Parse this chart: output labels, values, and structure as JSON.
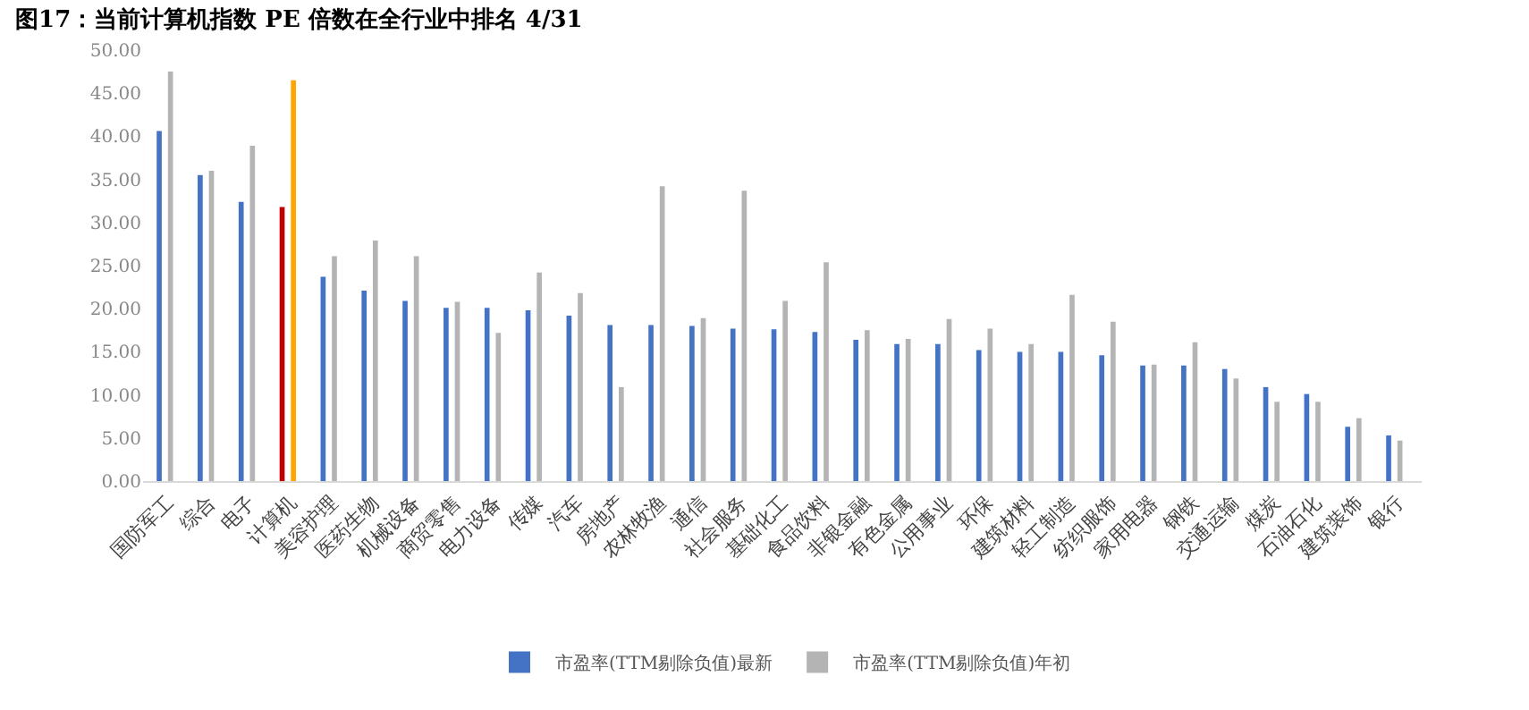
{
  "chart_data": {
    "type": "bar",
    "title": "图17：当前计算机指数 PE 倍数在全行业中排名 4/31",
    "categories": [
      "国防军工",
      "综合",
      "电子",
      "计算机",
      "美容护理",
      "医药生物",
      "机械设备",
      "商贸零售",
      "电力设备",
      "传媒",
      "汽车",
      "房地产",
      "农林牧渔",
      "通信",
      "社会服务",
      "基础化工",
      "食品饮料",
      "非银金融",
      "有色金属",
      "公用事业",
      "环保",
      "建筑材料",
      "轻工制造",
      "纺织服饰",
      "家用电器",
      "钢铁",
      "交通运输",
      "煤炭",
      "石油石化",
      "建筑装饰",
      "银行"
    ],
    "series": [
      {
        "name": "市盈率(TTM剔除负值)最新",
        "color": "#4472c4",
        "colors": [
          "#4472c4",
          "#4472c4",
          "#4472c4",
          "#c00000",
          "#4472c4",
          "#4472c4",
          "#4472c4",
          "#4472c4",
          "#4472c4",
          "#4472c4",
          "#4472c4",
          "#4472c4",
          "#4472c4",
          "#4472c4",
          "#4472c4",
          "#4472c4",
          "#4472c4",
          "#4472c4",
          "#4472c4",
          "#4472c4",
          "#4472c4",
          "#4472c4",
          "#4472c4",
          "#4472c4",
          "#4472c4",
          "#4472c4",
          "#4472c4",
          "#4472c4",
          "#4472c4",
          "#4472c4",
          "#4472c4"
        ],
        "values": [
          40.6,
          35.5,
          32.4,
          31.8,
          23.7,
          22.1,
          20.9,
          20.1,
          20.1,
          19.8,
          19.2,
          18.1,
          18.1,
          18.0,
          17.7,
          17.6,
          17.3,
          16.4,
          15.9,
          15.9,
          15.2,
          15.0,
          15.0,
          14.6,
          13.4,
          13.4,
          13.0,
          10.9,
          10.1,
          6.3,
          5.3
        ]
      },
      {
        "name": "市盈率(TTM剔除负值)年初",
        "color": "#b4b4b4",
        "colors": [
          "#b4b4b4",
          "#b4b4b4",
          "#b4b4b4",
          "#ffa500",
          "#b4b4b4",
          "#b4b4b4",
          "#b4b4b4",
          "#b4b4b4",
          "#b4b4b4",
          "#b4b4b4",
          "#b4b4b4",
          "#b4b4b4",
          "#b4b4b4",
          "#b4b4b4",
          "#b4b4b4",
          "#b4b4b4",
          "#b4b4b4",
          "#b4b4b4",
          "#b4b4b4",
          "#b4b4b4",
          "#b4b4b4",
          "#b4b4b4",
          "#b4b4b4",
          "#b4b4b4",
          "#b4b4b4",
          "#b4b4b4",
          "#b4b4b4",
          "#b4b4b4",
          "#b4b4b4",
          "#b4b4b4",
          "#b4b4b4"
        ],
        "values": [
          47.5,
          36.0,
          38.9,
          46.5,
          26.1,
          27.9,
          26.1,
          20.8,
          17.2,
          24.2,
          21.8,
          10.9,
          34.2,
          18.9,
          33.7,
          20.9,
          25.4,
          17.5,
          16.5,
          18.8,
          17.7,
          15.9,
          21.6,
          18.5,
          13.5,
          16.1,
          11.9,
          9.2,
          9.2,
          7.3,
          4.7
        ]
      }
    ],
    "ylim": [
      0,
      50
    ],
    "yticks": [
      {
        "value": 0,
        "label": "0.00"
      },
      {
        "value": 5,
        "label": "5.00"
      },
      {
        "value": 10,
        "label": "10.00"
      },
      {
        "value": 15,
        "label": "15.00"
      },
      {
        "value": 20,
        "label": "20.00"
      },
      {
        "value": 25,
        "label": "25.00"
      },
      {
        "value": 30,
        "label": "30.00"
      },
      {
        "value": 35,
        "label": "35.00"
      },
      {
        "value": 40,
        "label": "40.00"
      },
      {
        "value": 45,
        "label": "45.00"
      },
      {
        "value": 50,
        "label": "50.00"
      }
    ],
    "legend": "bottom"
  }
}
